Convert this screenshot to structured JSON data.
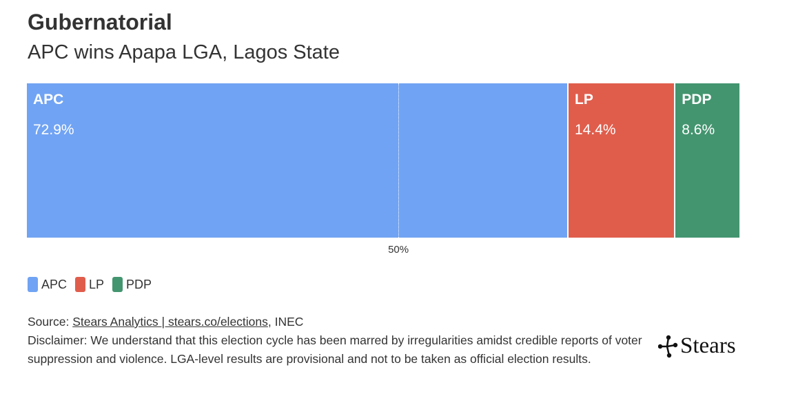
{
  "title": "Gubernatorial",
  "subtitle": "APC wins Apapa LGA, Lagos State",
  "chart_data": {
    "type": "bar",
    "orientation": "horizontal-stacked",
    "title": "Gubernatorial",
    "subtitle": "APC wins Apapa LGA, Lagos State",
    "categories": [
      "APC",
      "LP",
      "PDP"
    ],
    "values": [
      72.9,
      14.4,
      8.6
    ],
    "labels": [
      "72.9%",
      "14.4%",
      "8.6%"
    ],
    "colors": [
      "#70a3f3",
      "#e05d4c",
      "#43956f"
    ],
    "reference_line": {
      "value": 50,
      "label": "50%"
    },
    "xlim": [
      0,
      95.9
    ],
    "legend": "bottom-left",
    "grid": false
  },
  "legend": [
    {
      "label": "APC",
      "color": "#70a3f3"
    },
    {
      "label": "LP",
      "color": "#e05d4c"
    },
    {
      "label": "PDP",
      "color": "#43956f"
    }
  ],
  "source": {
    "prefix": "Source: ",
    "link_text": "Stears Analytics | stears.co/elections",
    "suffix": ", INEC"
  },
  "disclaimer": "Disclaimer: We understand that this election cycle has been marred by irregularities amidst credible reports of voter suppression and violence. LGA-level results are provisional and not to be taken as official election results.",
  "logo": {
    "text": "Stears",
    "icon": "network-nodes-icon"
  }
}
